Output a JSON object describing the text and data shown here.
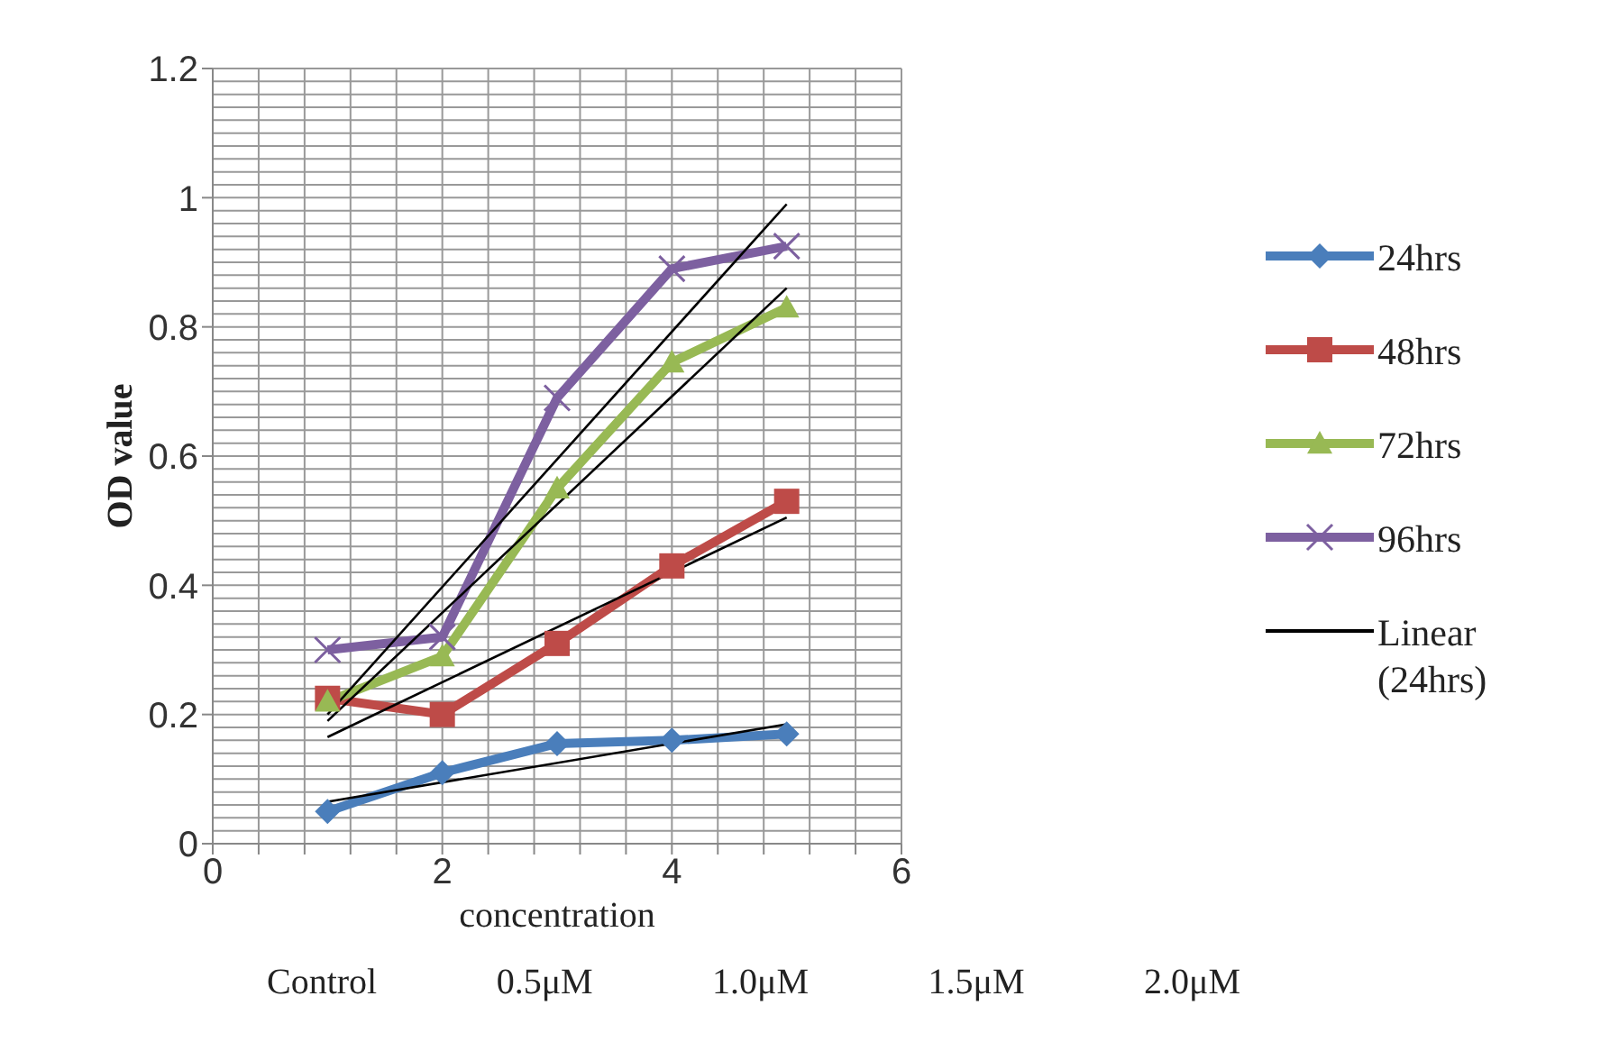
{
  "chart_data": {
    "type": "line",
    "xlabel": "concentration",
    "ylabel": "OD value",
    "xlim": [
      0,
      6
    ],
    "xticks": [
      0,
      {
        "value": 0.4,
        "label": null
      },
      {
        "value": 0.8,
        "label": null
      },
      {
        "value": 1.2,
        "label": null
      },
      {
        "value": 1.6,
        "label": null
      },
      2,
      {
        "value": 2.4,
        "label": null
      },
      {
        "value": 2.8,
        "label": null
      },
      {
        "value": 3.2,
        "label": null
      },
      {
        "value": 3.6,
        "label": null
      },
      4,
      {
        "value": 4.4,
        "label": null
      },
      {
        "value": 4.8,
        "label": null
      },
      {
        "value": 5.2,
        "label": null
      },
      {
        "value": 5.6,
        "label": null
      },
      6
    ],
    "ylim": [
      0,
      1.2
    ],
    "yticks": [
      0,
      0.2,
      0.4,
      0.6,
      0.8,
      1,
      1.2
    ],
    "grid": true,
    "legend": "right",
    "line_style": "solid",
    "series": [
      {
        "name": "24hrs",
        "color": "#4a7ebb",
        "marker": "diamond",
        "x": [
          1,
          2,
          3,
          4,
          5
        ],
        "values": [
          0.05,
          0.11,
          0.155,
          0.16,
          0.17
        ]
      },
      {
        "name": "48hrs",
        "color": "#be4b48",
        "marker": "square",
        "x": [
          1,
          2,
          3,
          4,
          5
        ],
        "values": [
          0.225,
          0.2,
          0.31,
          0.43,
          0.53
        ]
      },
      {
        "name": "72hrs",
        "color": "#98b954",
        "marker": "triangle",
        "x": [
          1,
          2,
          3,
          4,
          5
        ],
        "values": [
          0.22,
          0.29,
          0.55,
          0.745,
          0.83
        ]
      },
      {
        "name": "96hrs",
        "color": "#7d60a0",
        "marker": "cross",
        "x": [
          1,
          2,
          3,
          4,
          5
        ],
        "values": [
          0.3,
          0.32,
          0.69,
          0.89,
          0.925
        ]
      },
      {
        "name": "Linear (24hrs)",
        "color": "#000000",
        "marker": "none",
        "x": [
          1,
          5
        ],
        "values": [
          0.065,
          0.185
        ]
      },
      {
        "color": "#000000",
        "marker": "none",
        "x": [
          1,
          5
        ],
        "values": [
          0.165,
          0.505
        ]
      },
      {
        "color": "#000000",
        "marker": "none",
        "x": [
          1,
          5
        ],
        "values": [
          0.19,
          0.86
        ]
      },
      {
        "color": "#000000",
        "marker": "none",
        "x": [
          1,
          5
        ],
        "values": [
          0.2,
          0.99
        ]
      }
    ],
    "annotations": [
      "Control",
      "0.5μM",
      "1.0μM",
      "1.5μM",
      "2.0μM"
    ]
  }
}
